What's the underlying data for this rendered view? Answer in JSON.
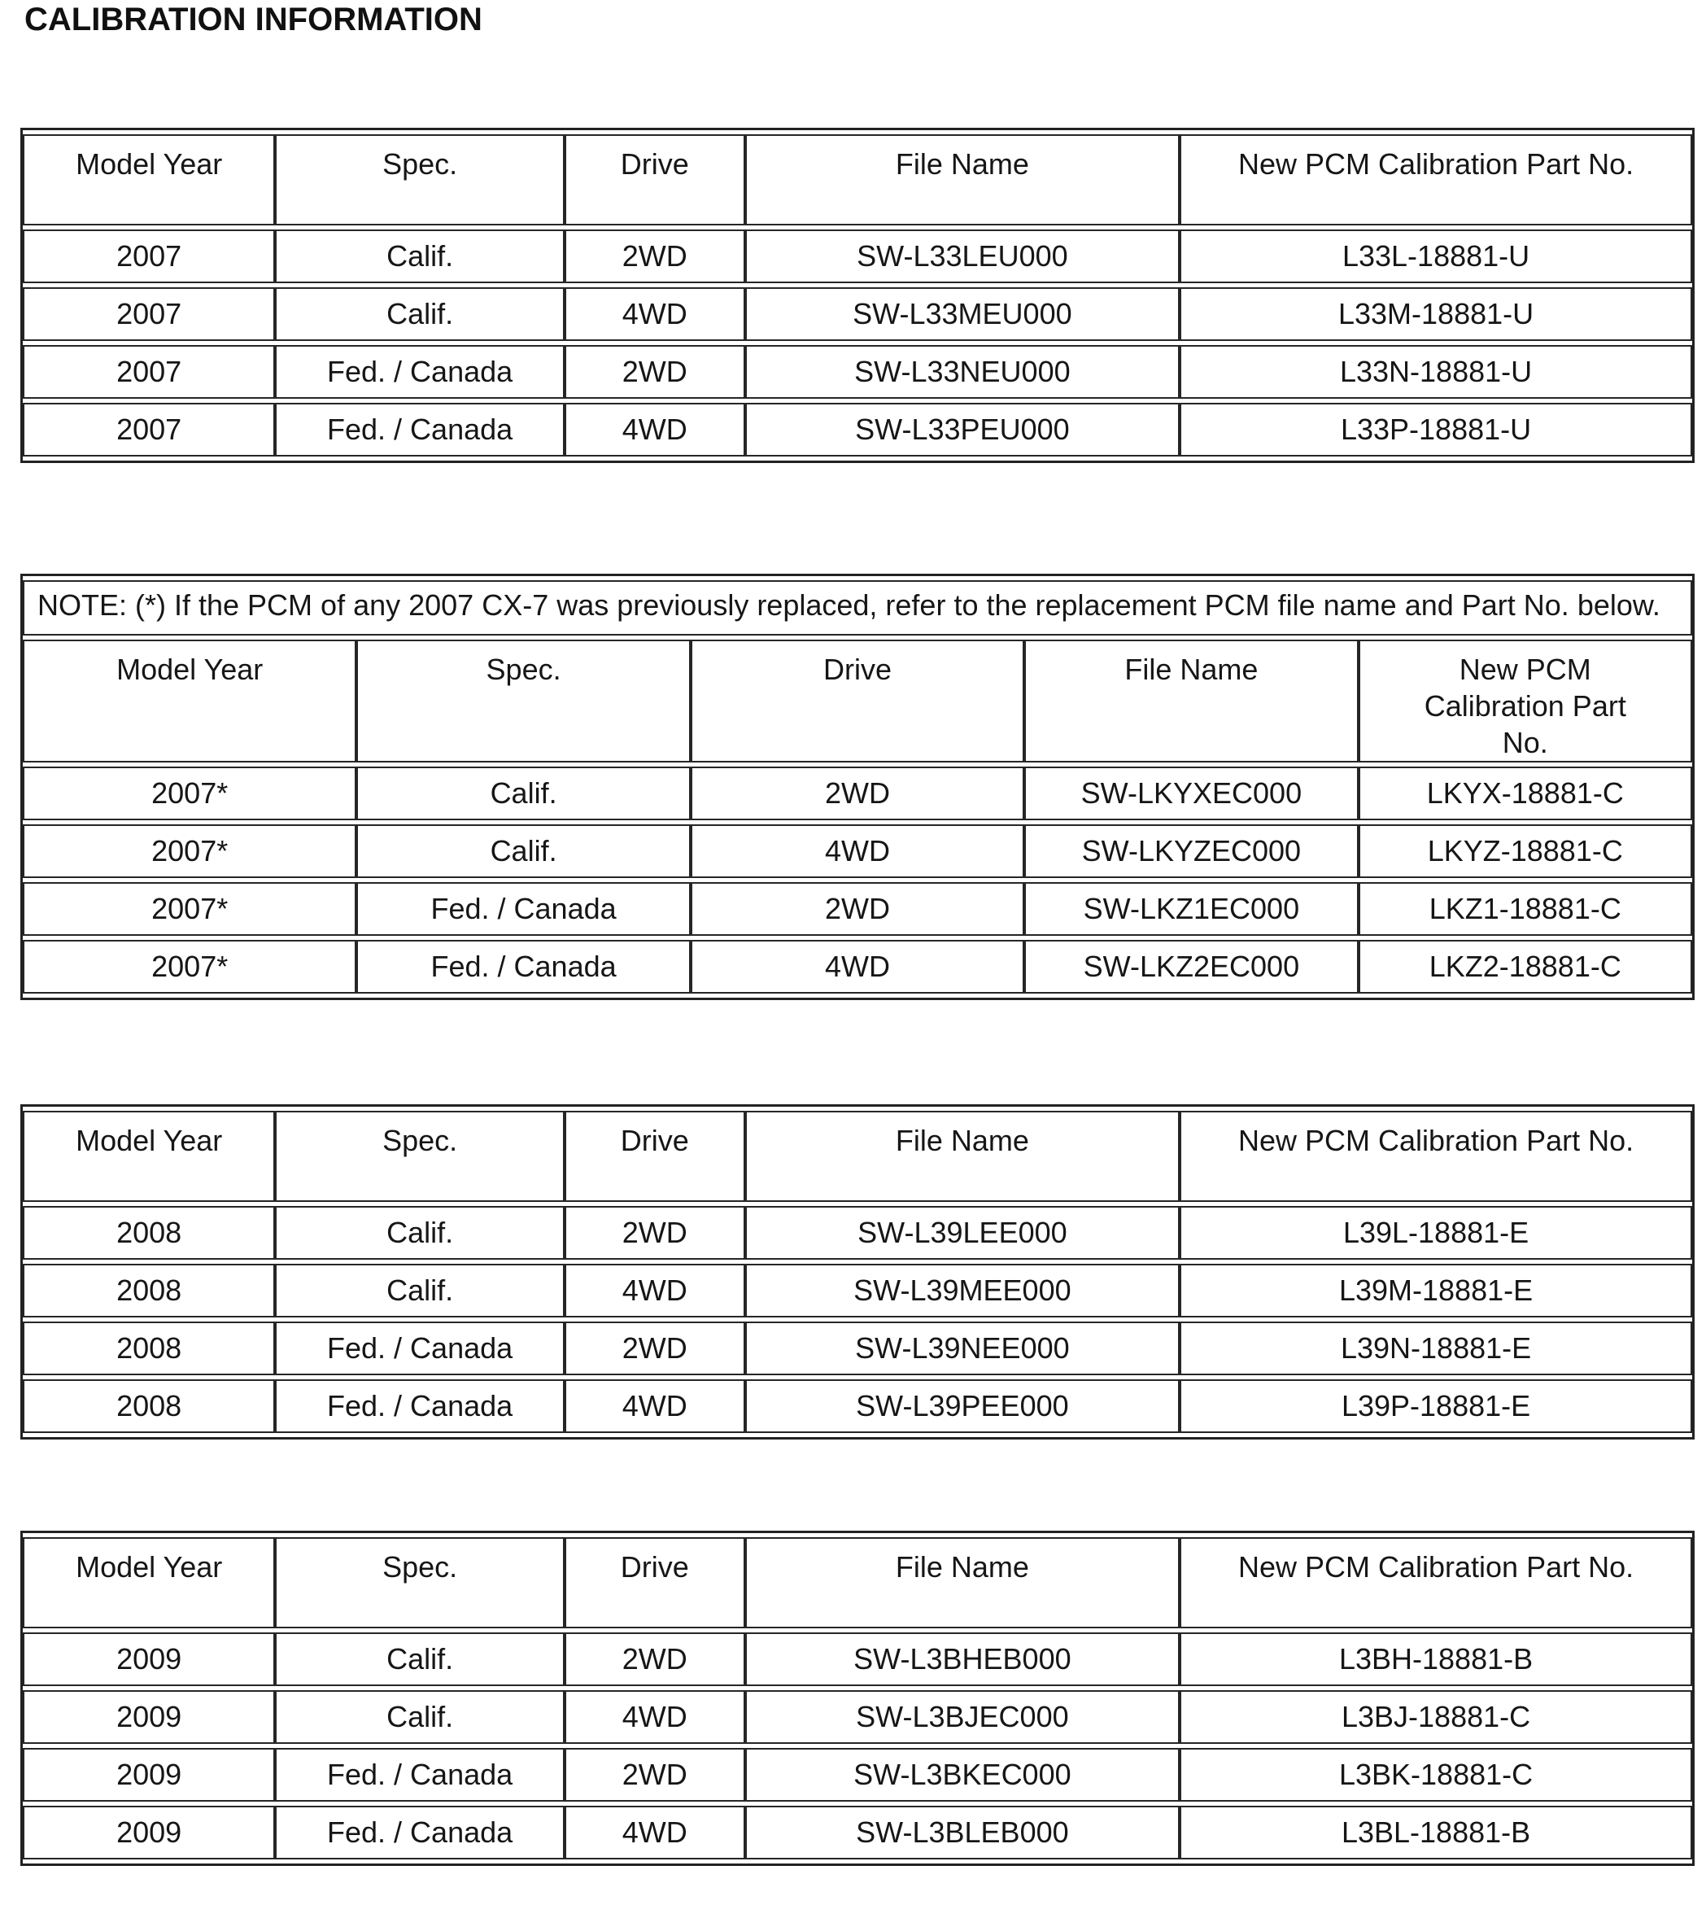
{
  "page": {
    "title": "CALIBRATION INFORMATION"
  },
  "table_columns": [
    "Model Year",
    "Spec.",
    "Drive",
    "File Name",
    "New PCM Calibration Part No."
  ],
  "tables": [
    {
      "rows": [
        [
          "2007",
          "Calif.",
          "2WD",
          "SW-L33LEU000",
          "L33L-18881-U"
        ],
        [
          "2007",
          "Calif.",
          "4WD",
          "SW-L33MEU000",
          "L33M-18881-U"
        ],
        [
          "2007",
          "Fed. / Canada",
          "2WD",
          "SW-L33NEU000",
          "L33N-18881-U"
        ],
        [
          "2007",
          "Fed. / Canada",
          "4WD",
          "SW-L33PEU000",
          "L33P-18881-U"
        ]
      ]
    },
    {
      "note": "NOTE: (*) If the PCM of any 2007 CX-7 was previously replaced, refer to the replacement PCM file name and Part No. below.",
      "rows": [
        [
          "2007*",
          "Calif.",
          "2WD",
          "SW-LKYXEC000",
          "LKYX-18881-C"
        ],
        [
          "2007*",
          "Calif.",
          "4WD",
          "SW-LKYZEC000",
          "LKYZ-18881-C"
        ],
        [
          "2007*",
          "Fed. / Canada",
          "2WD",
          "SW-LKZ1EC000",
          "LKZ1-18881-C"
        ],
        [
          "2007*",
          "Fed. / Canada",
          "4WD",
          "SW-LKZ2EC000",
          "LKZ2-18881-C"
        ]
      ]
    },
    {
      "rows": [
        [
          "2008",
          "Calif.",
          "2WD",
          "SW-L39LEE000",
          "L39L-18881-E"
        ],
        [
          "2008",
          "Calif.",
          "4WD",
          "SW-L39MEE000",
          "L39M-18881-E"
        ],
        [
          "2008",
          "Fed. / Canada",
          "2WD",
          "SW-L39NEE000",
          "L39N-18881-E"
        ],
        [
          "2008",
          "Fed. / Canada",
          "4WD",
          "SW-L39PEE000",
          "L39P-18881-E"
        ]
      ]
    },
    {
      "rows": [
        [
          "2009",
          "Calif.",
          "2WD",
          "SW-L3BHEB000",
          "L3BH-18881-B"
        ],
        [
          "2009",
          "Calif.",
          "4WD",
          "SW-L3BJEC000",
          "L3BJ-18881-C"
        ],
        [
          "2009",
          "Fed. / Canada",
          "2WD",
          "SW-L3BKEC000",
          "L3BK-18881-C"
        ],
        [
          "2009",
          "Fed. / Canada",
          "4WD",
          "SW-L3BLEB000",
          "L3BL-18881-B"
        ]
      ]
    }
  ]
}
